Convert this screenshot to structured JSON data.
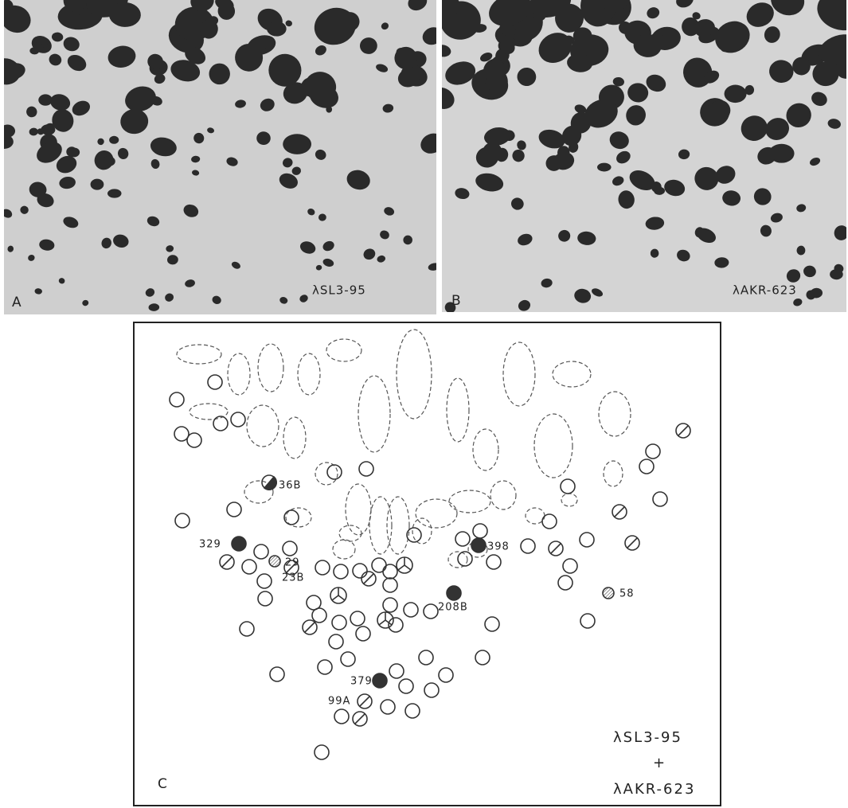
{
  "panels": [
    {
      "label": "A",
      "caption": "λSL3-95"
    },
    {
      "label": "B",
      "caption": "λAKR-623"
    }
  ],
  "diagram": {
    "label": "C",
    "spots": [
      "36B",
      "329",
      "29",
      "23B",
      "398",
      "208B",
      "58",
      "379",
      "99A"
    ],
    "legend": [
      "λSL3-95",
      "+",
      "λAKR-623"
    ]
  }
}
